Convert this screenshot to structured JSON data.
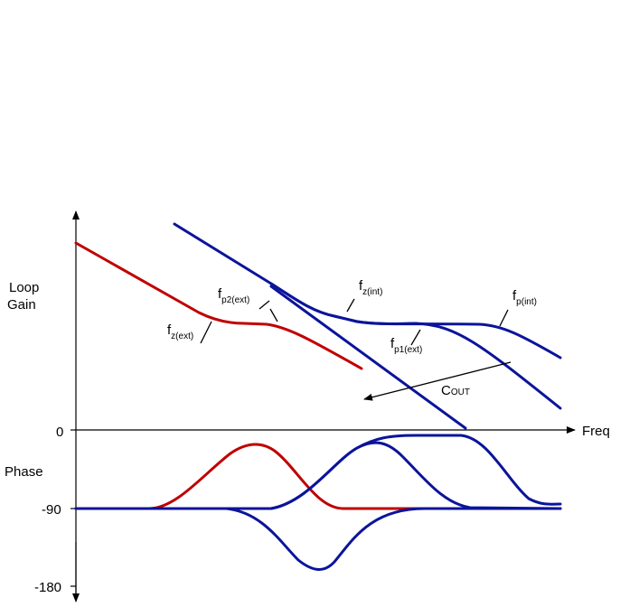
{
  "axis_labels": {
    "loop_gain_line1": "Loop",
    "loop_gain_line2": "Gain",
    "phase": "Phase",
    "freq": "Freq",
    "tick_0": "0",
    "tick_m90": "-90",
    "tick_m180": "-180"
  },
  "annotations": {
    "fz_ext": {
      "main": "f",
      "sub": "z(ext)"
    },
    "fp2_ext": {
      "main": "f",
      "sub": "p2(ext)"
    },
    "fz_int": {
      "main": "f",
      "sub": "z(int)"
    },
    "fp_int": {
      "main": "f",
      "sub": "p(int)"
    },
    "fp1_ext": {
      "main": "f",
      "sub": "p1(ext)"
    },
    "cout": {
      "main": "C",
      "sub": "OUT"
    }
  },
  "colors": {
    "external_curve": "#c00000",
    "internal_curve": "#0b149a",
    "axis": "#000000"
  }
}
